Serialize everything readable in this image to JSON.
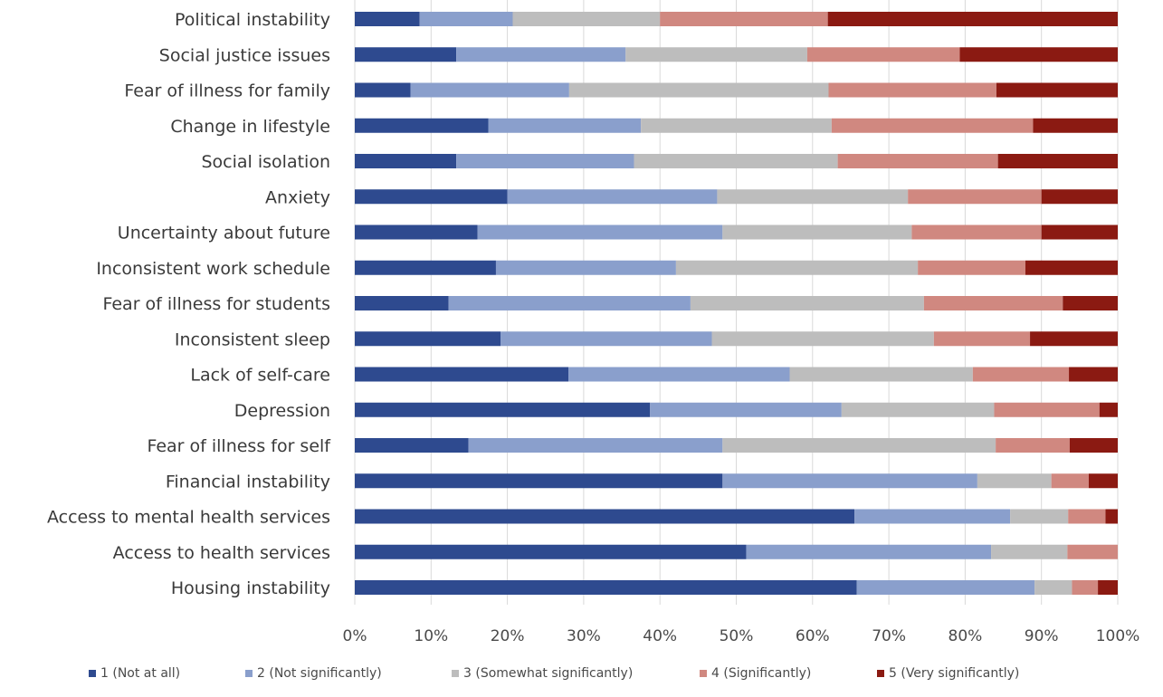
{
  "chart_data": {
    "type": "bar",
    "orientation": "horizontal",
    "stacked": "percent",
    "categories": [
      "Political instability",
      "Social justice issues",
      "Fear of illness for family",
      "Change in lifestyle",
      "Social isolation",
      "Anxiety",
      "Uncertainty about future",
      "Inconsistent work schedule",
      "Fear of illness for students",
      "Inconsistent sleep",
      "Lack of self-care",
      "Depression",
      "Fear of illness for self",
      "Financial instability",
      "Access to mental health services",
      "Access to health services",
      "Housing instability"
    ],
    "series": [
      {
        "name": "1 (Not at all)",
        "color": "#2e4a8f",
        "values": [
          8.5,
          13.3,
          7.3,
          17.5,
          13.3,
          20.0,
          16.1,
          18.5,
          12.3,
          19.1,
          28.0,
          38.7,
          14.9,
          48.2,
          65.5,
          51.3,
          65.8
        ]
      },
      {
        "name": "2 (Not significantly)",
        "color": "#8a9fcc",
        "values": [
          12.2,
          22.2,
          20.8,
          20.0,
          23.3,
          27.5,
          32.1,
          23.6,
          31.7,
          27.7,
          29.0,
          25.1,
          33.3,
          33.4,
          20.4,
          32.1,
          23.3
        ]
      },
      {
        "name": "3 (Somewhat significantly)",
        "color": "#bdbdbd",
        "values": [
          19.3,
          23.8,
          34.0,
          25.0,
          26.7,
          25.0,
          24.8,
          31.7,
          30.6,
          29.1,
          24.0,
          20.0,
          35.8,
          9.7,
          7.6,
          10.0,
          4.9
        ]
      },
      {
        "name": "4 (Significantly)",
        "color": "#d08880",
        "values": [
          22.0,
          20.0,
          22.0,
          26.4,
          21.0,
          17.5,
          17.0,
          14.1,
          18.2,
          12.6,
          12.6,
          13.8,
          9.7,
          4.9,
          4.9,
          6.6,
          3.4
        ]
      },
      {
        "name": "5 (Very significantly)",
        "color": "#8b1a12",
        "values": [
          38.0,
          20.7,
          15.9,
          11.1,
          15.7,
          10.0,
          10.0,
          12.1,
          7.2,
          11.5,
          6.4,
          2.4,
          6.3,
          3.8,
          1.6,
          0.0,
          2.6
        ]
      }
    ],
    "xlim": [
      0,
      100
    ],
    "x_ticks": [
      "0%",
      "10%",
      "20%",
      "30%",
      "40%",
      "50%",
      "60%",
      "70%",
      "80%",
      "90%",
      "100%"
    ],
    "title": "",
    "xlabel": "",
    "ylabel": "",
    "grid": "vertical",
    "legend": "bottom"
  }
}
